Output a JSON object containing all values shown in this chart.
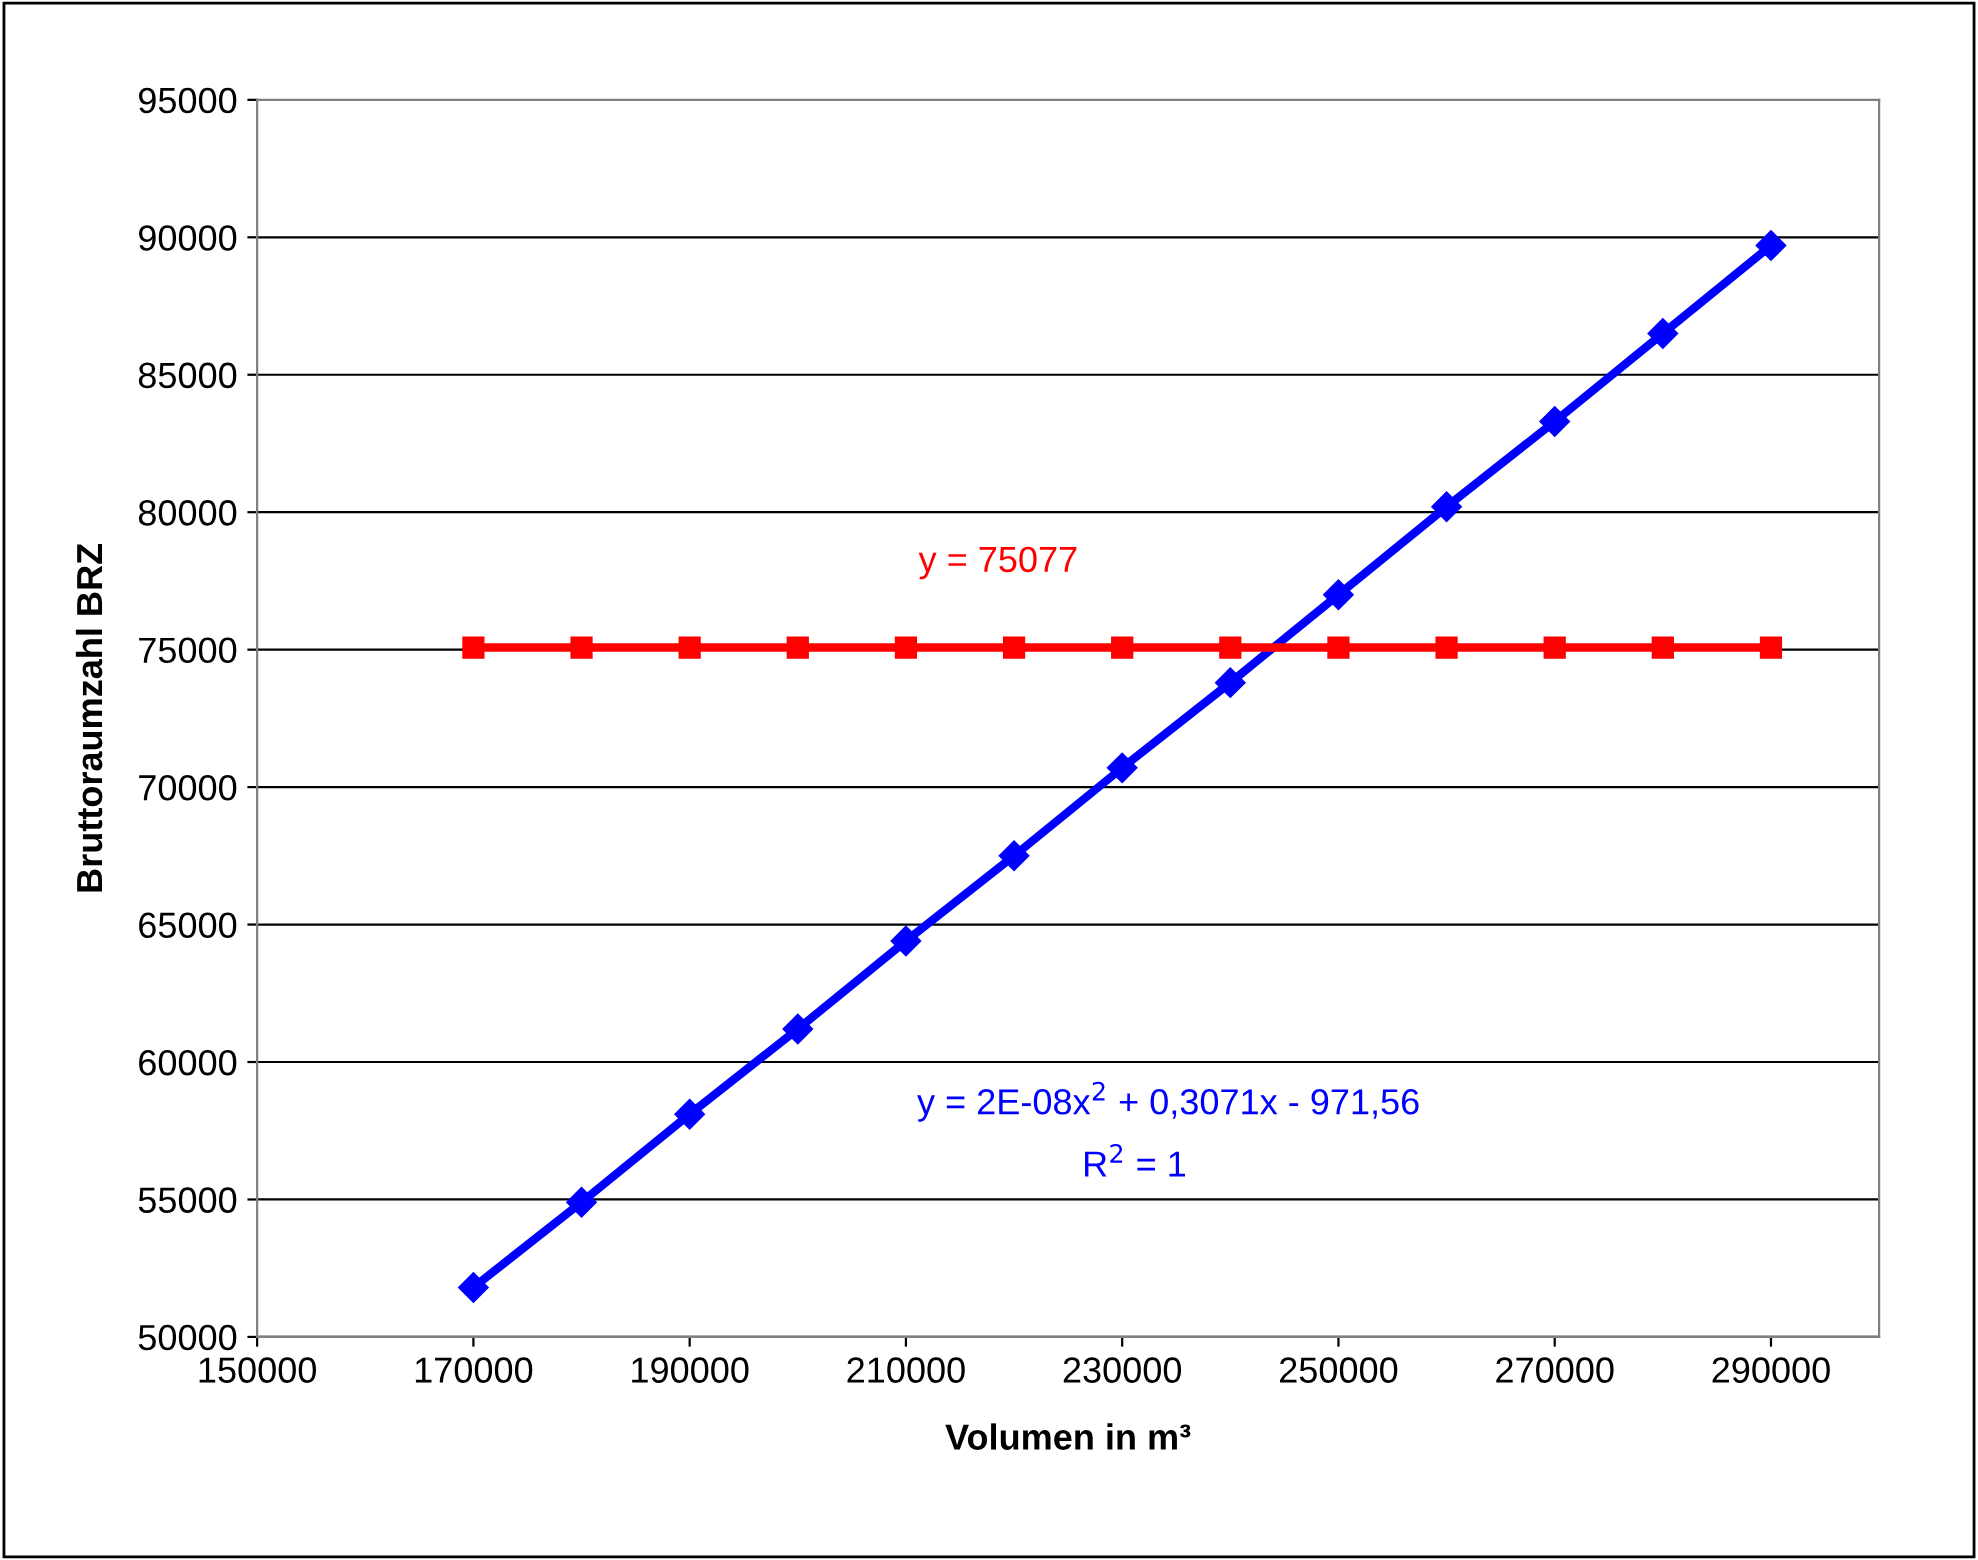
{
  "chart_data": {
    "type": "line",
    "xlabel": "Volumen in m³",
    "ylabel": "Bruttoraumzahl BRZ",
    "x": [
      170000,
      180000,
      190000,
      200000,
      210000,
      220000,
      230000,
      240000,
      250000,
      260000,
      270000,
      280000,
      290000
    ],
    "series": [
      {
        "color": "#0000ff",
        "marker": "diamond",
        "values": [
          51800,
          54900,
          58100,
          61200,
          64400,
          67500,
          70700,
          73800,
          77000,
          80200,
          83300,
          86500,
          89700
        ]
      },
      {
        "color": "#ff0000",
        "marker": "square",
        "values": [
          75077,
          75077,
          75077,
          75077,
          75077,
          75077,
          75077,
          75077,
          75077,
          75077,
          75077,
          75077,
          75077
        ]
      }
    ],
    "annotations": [
      "y = 75077",
      "y = 2E-08x$^{2}$ + 0,3071x - 971,56",
      "R$^{2}$ = 1"
    ],
    "xlim": [
      150000,
      300000
    ],
    "xticks": [
      150000,
      170000,
      190000,
      210000,
      230000,
      250000,
      270000,
      290000
    ],
    "ylim": [
      50000,
      95000
    ],
    "yticks": [
      50000,
      55000,
      60000,
      65000,
      70000,
      75000,
      80000,
      85000,
      90000,
      95000
    ],
    "grid": "y",
    "line_style": "solid"
  }
}
